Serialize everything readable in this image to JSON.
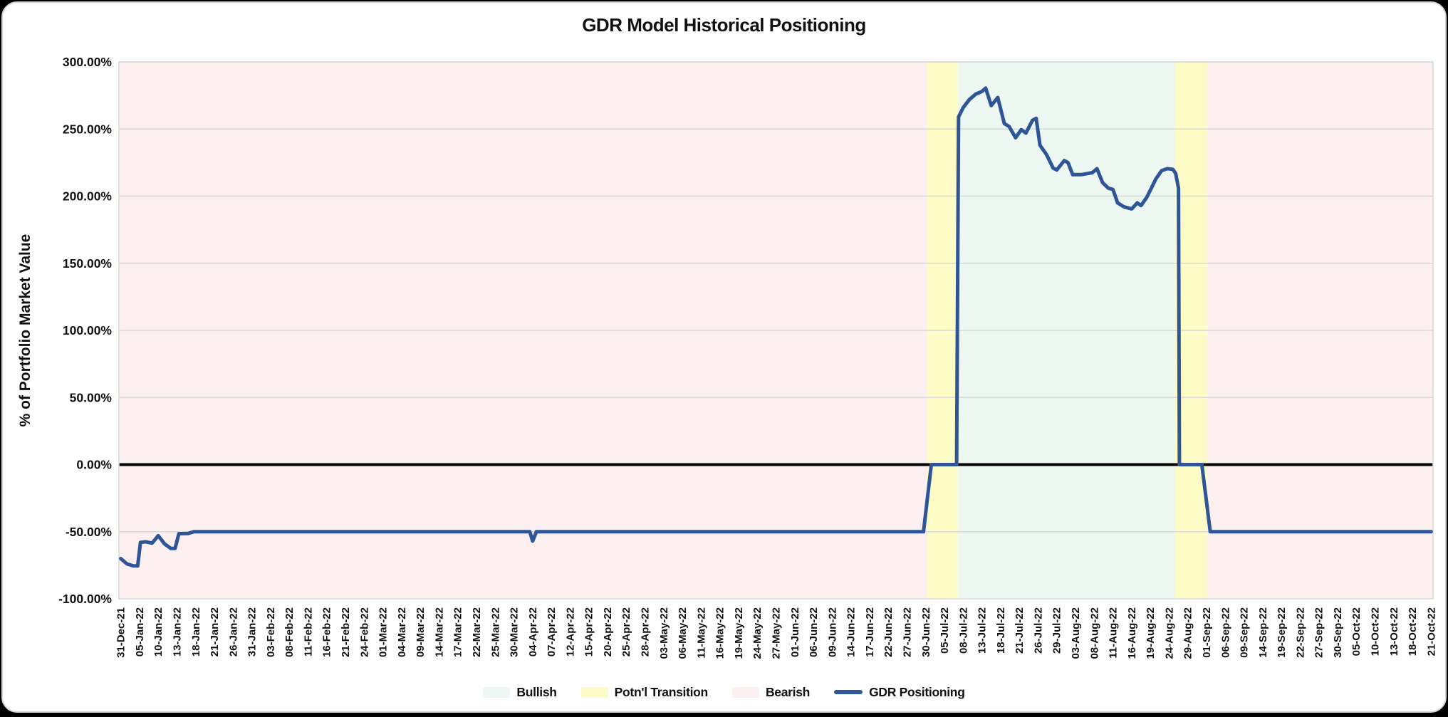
{
  "page": {
    "background": "#000000",
    "card_background": "#ffffff",
    "card_border": "#d7d7d7"
  },
  "chart_data": {
    "type": "line",
    "title": "GDR Model Historical Positioning",
    "ylabel": "% of Portfolio Market Value",
    "xlabel": "",
    "ylim": [
      -100,
      300
    ],
    "ytick_step": 50,
    "ytick_labels": [
      "300.00%",
      "250.00%",
      "200.00%",
      "150.00%",
      "100.00%",
      "50.00%",
      "0.00%",
      "-50.00%",
      "-100.00%"
    ],
    "grid": "horizontal",
    "grid_color": "#d9d9d9",
    "zero_line_color": "#000000",
    "legend_position": "bottom-center",
    "x_labels": [
      "31-Dec-21",
      "05-Jan-22",
      "10-Jan-22",
      "13-Jan-22",
      "18-Jan-22",
      "21-Jan-22",
      "26-Jan-22",
      "31-Jan-22",
      "03-Feb-22",
      "08-Feb-22",
      "11-Feb-22",
      "16-Feb-22",
      "21-Feb-22",
      "24-Feb-22",
      "01-Mar-22",
      "04-Mar-22",
      "09-Mar-22",
      "14-Mar-22",
      "17-Mar-22",
      "22-Mar-22",
      "25-Mar-22",
      "30-Mar-22",
      "04-Apr-22",
      "07-Apr-22",
      "12-Apr-22",
      "15-Apr-22",
      "20-Apr-22",
      "25-Apr-22",
      "28-Apr-22",
      "03-May-22",
      "06-May-22",
      "11-May-22",
      "16-May-22",
      "19-May-22",
      "24-May-22",
      "27-May-22",
      "01-Jun-22",
      "06-Jun-22",
      "09-Jun-22",
      "14-Jun-22",
      "17-Jun-22",
      "22-Jun-22",
      "27-Jun-22",
      "30-Jun-22",
      "05-Jul-22",
      "08-Jul-22",
      "13-Jul-22",
      "18-Jul-22",
      "21-Jul-22",
      "26-Jul-22",
      "29-Jul-22",
      "03-Aug-22",
      "08-Aug-22",
      "11-Aug-22",
      "16-Aug-22",
      "19-Aug-22",
      "24-Aug-22",
      "29-Aug-22",
      "01-Sep-22",
      "06-Sep-22",
      "09-Sep-22",
      "14-Sep-22",
      "19-Sep-22",
      "22-Sep-22",
      "27-Sep-22",
      "30-Sep-22",
      "05-Oct-22",
      "10-Oct-22",
      "13-Oct-22",
      "18-Oct-22",
      "21-Oct-22"
    ],
    "zones": [
      {
        "name": "Bearish",
        "color": "#fbf0ef",
        "start": -0.1,
        "end": 43.07
      },
      {
        "name": "Potn'l Transition",
        "color": "#fdfcc6",
        "start": 43.07,
        "end": 44.71
      },
      {
        "name": "Bullish",
        "color": "#edf7f1",
        "start": 44.71,
        "end": 56.32
      },
      {
        "name": "Potn'l Transition",
        "color": "#fdfcc6",
        "start": 56.32,
        "end": 58.03
      },
      {
        "name": "Bearish",
        "color": "#fbf0ef",
        "start": 58.03,
        "end": 70.1
      }
    ],
    "series": [
      {
        "name": "GDR Positioning",
        "color": "#2f5597",
        "points": [
          [
            0,
            -70
          ],
          [
            0.33,
            -74
          ],
          [
            0.67,
            -75.5
          ],
          [
            0.9,
            -75.5
          ],
          [
            1.05,
            -58
          ],
          [
            1.33,
            -57.5
          ],
          [
            1.67,
            -58.5
          ],
          [
            2,
            -53
          ],
          [
            2.33,
            -59
          ],
          [
            2.67,
            -62.5
          ],
          [
            2.9,
            -62.5
          ],
          [
            3.1,
            -51.5
          ],
          [
            3.6,
            -51.3
          ],
          [
            3.9,
            -50
          ],
          [
            21.85,
            -50
          ],
          [
            22,
            -57
          ],
          [
            22.2,
            -50
          ],
          [
            42.88,
            -50
          ],
          [
            43.3,
            0
          ],
          [
            44.65,
            0
          ],
          [
            44.75,
            259
          ],
          [
            45,
            266
          ],
          [
            45.33,
            272
          ],
          [
            45.67,
            276
          ],
          [
            46,
            278
          ],
          [
            46.2,
            280.5
          ],
          [
            46.5,
            267.5
          ],
          [
            46.85,
            273.5
          ],
          [
            47.2,
            254
          ],
          [
            47.45,
            252
          ],
          [
            47.8,
            243.5
          ],
          [
            48.1,
            249.5
          ],
          [
            48.35,
            247
          ],
          [
            48.7,
            256.5
          ],
          [
            48.9,
            258
          ],
          [
            49.1,
            238
          ],
          [
            49.45,
            231
          ],
          [
            49.8,
            221
          ],
          [
            50,
            219.5
          ],
          [
            50.4,
            226.5
          ],
          [
            50.6,
            225
          ],
          [
            50.85,
            216
          ],
          [
            51.3,
            216
          ],
          [
            51.9,
            217.5
          ],
          [
            52.15,
            220.5
          ],
          [
            52.45,
            210
          ],
          [
            52.75,
            206
          ],
          [
            53,
            205
          ],
          [
            53.25,
            195
          ],
          [
            53.6,
            192
          ],
          [
            54,
            190.5
          ],
          [
            54.3,
            195
          ],
          [
            54.5,
            193
          ],
          [
            54.8,
            199
          ],
          [
            55.05,
            206
          ],
          [
            55.3,
            213
          ],
          [
            55.6,
            219
          ],
          [
            55.9,
            220.5
          ],
          [
            56.2,
            220
          ],
          [
            56.35,
            217
          ],
          [
            56.5,
            206
          ],
          [
            56.55,
            0
          ],
          [
            57.75,
            0
          ],
          [
            58.2,
            -50
          ],
          [
            70,
            -50
          ]
        ]
      }
    ],
    "legend": [
      {
        "label": "Bullish",
        "type": "area",
        "color": "#edf7f1"
      },
      {
        "label": "Potn'l Transition",
        "type": "area",
        "color": "#fdfcc6"
      },
      {
        "label": "Bearish",
        "type": "area",
        "color": "#fbf0ef"
      },
      {
        "label": "GDR Positioning",
        "type": "line",
        "color": "#2f5597"
      }
    ]
  }
}
